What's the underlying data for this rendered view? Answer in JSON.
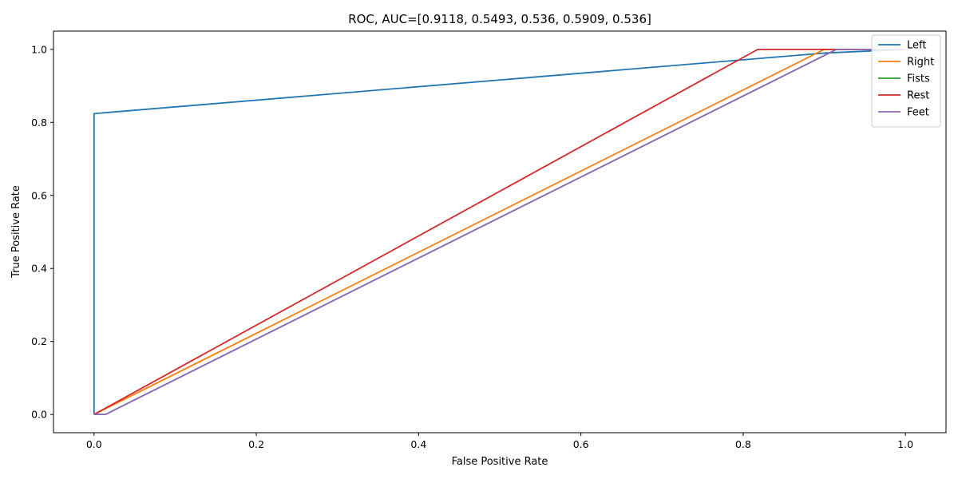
{
  "chart_data": {
    "type": "line",
    "title": "ROC, AUC=[0.9118, 0.5493, 0.536, 0.5909, 0.536]",
    "xlabel": "False Positive Rate",
    "ylabel": "True Positive Rate",
    "xlim": [
      -0.05,
      1.05
    ],
    "ylim": [
      -0.05,
      1.05
    ],
    "xticks": [
      0.0,
      0.2,
      0.4,
      0.6,
      0.8,
      1.0
    ],
    "yticks": [
      0.0,
      0.2,
      0.4,
      0.6,
      0.8,
      1.0
    ],
    "xtick_labels": [
      "0.0",
      "0.2",
      "0.4",
      "0.6",
      "0.8",
      "1.0"
    ],
    "ytick_labels": [
      "0.0",
      "0.2",
      "0.4",
      "0.6",
      "0.8",
      "1.0"
    ],
    "grid": false,
    "legend_position": "top-right",
    "series": [
      {
        "name": "Left",
        "color": "#1f77b4",
        "x": [
          0.0,
          0.0,
          0.0,
          0.9,
          1.0
        ],
        "y": [
          0.0,
          0.0,
          0.824,
          0.99,
          1.0
        ]
      },
      {
        "name": "Right",
        "color": "#ff7f0e",
        "x": [
          0.0,
          0.0,
          0.9,
          1.0
        ],
        "y": [
          0.0,
          0.0,
          1.0,
          1.0
        ]
      },
      {
        "name": "Fists",
        "color": "#2ca02c",
        "x": [
          0.0,
          0.014,
          0.915,
          1.0
        ],
        "y": [
          0.0,
          0.0,
          1.0,
          1.0
        ]
      },
      {
        "name": "Rest",
        "color": "#d62728",
        "x": [
          0.0,
          0.0,
          0.818,
          1.0
        ],
        "y": [
          0.0,
          0.0,
          1.0,
          1.0
        ]
      },
      {
        "name": "Feet",
        "color": "#9467bd",
        "x": [
          0.0,
          0.014,
          0.915,
          1.0
        ],
        "y": [
          0.0,
          0.0,
          1.0,
          1.0
        ]
      }
    ]
  }
}
